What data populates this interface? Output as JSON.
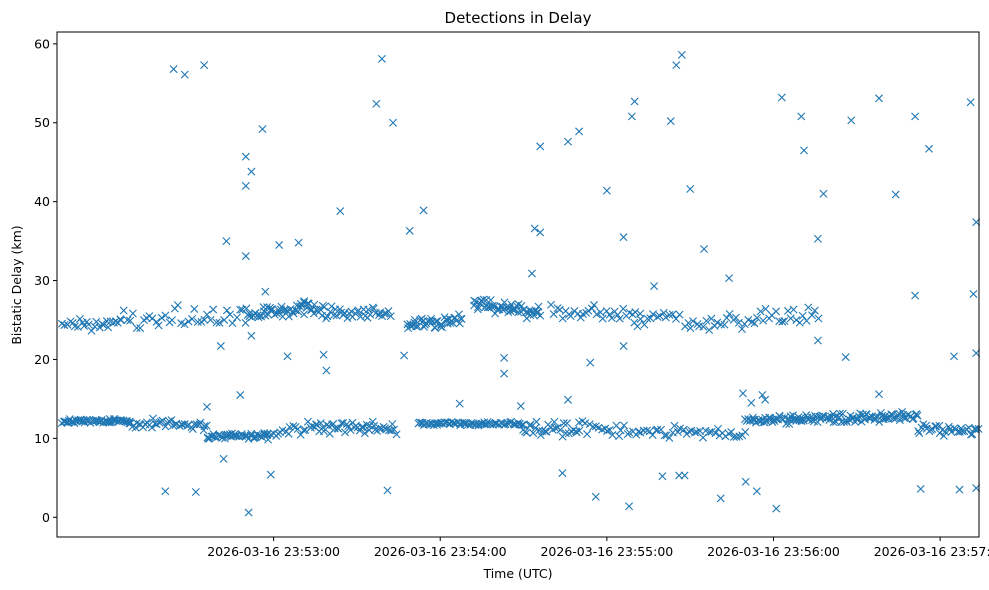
{
  "chart_data": {
    "type": "scatter",
    "title": "Detections in Delay",
    "xlabel": "Time (UTC)",
    "ylabel": "Bistatic Delay (km)",
    "marker": "x",
    "color": "#1f77b4",
    "xlim_seconds": [
      -48,
      284
    ],
    "ylim": [
      -2.5,
      61.5
    ],
    "x_unit": "seconds after 2026-03-16 23:52:30",
    "xticks": [
      {
        "t": 30,
        "label": "2026-03-16 23:53:00"
      },
      {
        "t": 90,
        "label": "2026-03-16 23:54:00"
      },
      {
        "t": 150,
        "label": "2026-03-16 23:55:00"
      },
      {
        "t": 210,
        "label": "2026-03-16 23:56:00"
      },
      {
        "t": 270,
        "label": "2026-03-16 23:57:00"
      }
    ],
    "yticks": [
      0,
      10,
      20,
      30,
      40,
      50,
      60
    ],
    "outliers": [
      [
        -6,
        56.8
      ],
      [
        -2,
        56.1
      ],
      [
        5,
        57.3
      ],
      [
        20,
        45.7
      ],
      [
        20,
        42.0
      ],
      [
        22,
        43.8
      ],
      [
        26,
        49.2
      ],
      [
        67,
        52.4
      ],
      [
        69,
        58.1
      ],
      [
        73,
        50.0
      ],
      [
        126,
        47.0
      ],
      [
        136,
        47.6
      ],
      [
        140,
        48.9
      ],
      [
        159,
        50.8
      ],
      [
        160,
        52.7
      ],
      [
        173,
        50.2
      ],
      [
        175,
        57.3
      ],
      [
        177,
        58.6
      ],
      [
        180,
        41.6
      ],
      [
        213,
        53.2
      ],
      [
        220,
        50.8
      ],
      [
        221,
        46.5
      ],
      [
        238,
        50.3
      ],
      [
        248,
        53.1
      ],
      [
        261,
        50.8
      ],
      [
        266,
        46.7
      ],
      [
        281,
        52.6
      ],
      [
        13,
        35.0
      ],
      [
        20,
        33.1
      ],
      [
        32,
        34.5
      ],
      [
        39,
        34.8
      ],
      [
        54,
        38.8
      ],
      [
        79,
        36.3
      ],
      [
        84,
        38.9
      ],
      [
        124,
        36.6
      ],
      [
        126,
        36.1
      ],
      [
        150,
        41.4
      ],
      [
        156,
        35.5
      ],
      [
        185,
        34.0
      ],
      [
        226,
        35.3
      ],
      [
        228,
        41.0
      ],
      [
        254,
        40.9
      ],
      [
        283,
        37.4
      ],
      [
        -9,
        3.3
      ],
      [
        2,
        3.2
      ],
      [
        21,
        0.6
      ],
      [
        29,
        5.4
      ],
      [
        71,
        3.4
      ],
      [
        134,
        5.6
      ],
      [
        146,
        2.6
      ],
      [
        158,
        1.4
      ],
      [
        170,
        5.2
      ],
      [
        176,
        5.3
      ],
      [
        178,
        5.3
      ],
      [
        191,
        2.4
      ],
      [
        200,
        4.5
      ],
      [
        204,
        3.3
      ],
      [
        211,
        1.1
      ],
      [
        263,
        3.6
      ],
      [
        277,
        3.5
      ],
      [
        283,
        3.7
      ],
      [
        12,
        7.4
      ],
      [
        49,
        18.6
      ],
      [
        113,
        18.2
      ],
      [
        35,
        20.4
      ],
      [
        48,
        20.6
      ],
      [
        77,
        20.5
      ],
      [
        113,
        20.2
      ],
      [
        144,
        19.6
      ],
      [
        156,
        21.7
      ],
      [
        226,
        22.4
      ],
      [
        236,
        20.3
      ],
      [
        275,
        20.4
      ],
      [
        283,
        20.8
      ],
      [
        18,
        15.5
      ],
      [
        97,
        14.4
      ],
      [
        136,
        14.9
      ],
      [
        199,
        15.7
      ],
      [
        206,
        15.5
      ],
      [
        248,
        15.6
      ],
      [
        6,
        14.0
      ],
      [
        119,
        14.1
      ],
      [
        202,
        14.5
      ],
      [
        207,
        14.9
      ],
      [
        11,
        21.7
      ],
      [
        22,
        23.0
      ],
      [
        27,
        28.6
      ],
      [
        41,
        27.4
      ],
      [
        123,
        30.9
      ],
      [
        194,
        30.3
      ],
      [
        167,
        29.3
      ],
      [
        162,
        25.8
      ],
      [
        261,
        28.1
      ],
      [
        282,
        28.3
      ]
    ],
    "clusters": [
      {
        "t0": -46,
        "t1": -22,
        "n": 55,
        "ystart": 12.1,
        "yend": 12.2,
        "spread": 0.35
      },
      {
        "t0": -22,
        "t1": 6,
        "n": 40,
        "ystart": 12.0,
        "yend": 11.6,
        "spread": 0.8
      },
      {
        "t0": 6,
        "t1": 28,
        "n": 45,
        "ystart": 10.2,
        "yend": 10.4,
        "spread": 0.5
      },
      {
        "t0": 28,
        "t1": 45,
        "n": 20,
        "ystart": 10.5,
        "yend": 11.6,
        "spread": 0.9
      },
      {
        "t0": 45,
        "t1": 74,
        "n": 45,
        "ystart": 11.5,
        "yend": 11.2,
        "spread": 1.0
      },
      {
        "t0": 82,
        "t1": 120,
        "n": 70,
        "ystart": 11.9,
        "yend": 11.8,
        "spread": 0.3
      },
      {
        "t0": 120,
        "t1": 140,
        "n": 30,
        "ystart": 11.4,
        "yend": 11.0,
        "spread": 1.0
      },
      {
        "t0": 140,
        "t1": 200,
        "n": 60,
        "ystart": 11.5,
        "yend": 10.5,
        "spread": 1.2
      },
      {
        "t0": 200,
        "t1": 262,
        "n": 130,
        "ystart": 12.3,
        "yend": 12.8,
        "spread": 0.7
      },
      {
        "t0": 262,
        "t1": 285,
        "n": 35,
        "ystart": 11.0,
        "yend": 11.2,
        "spread": 1.1
      },
      {
        "t0": -46,
        "t1": -25,
        "n": 25,
        "ystart": 24.3,
        "yend": 24.5,
        "spread": 0.8
      },
      {
        "t0": -25,
        "t1": 20,
        "n": 40,
        "ystart": 24.8,
        "yend": 26.0,
        "spread": 1.6
      },
      {
        "t0": 20,
        "t1": 48,
        "n": 55,
        "ystart": 26.0,
        "yend": 26.3,
        "spread": 1.2
      },
      {
        "t0": 48,
        "t1": 72,
        "n": 35,
        "ystart": 26.0,
        "yend": 25.7,
        "spread": 1.1
      },
      {
        "t0": 78,
        "t1": 98,
        "n": 40,
        "ystart": 24.5,
        "yend": 25.0,
        "spread": 1.0
      },
      {
        "t0": 102,
        "t1": 126,
        "n": 55,
        "ystart": 27.0,
        "yend": 26.0,
        "spread": 1.0
      },
      {
        "t0": 130,
        "t1": 160,
        "n": 30,
        "ystart": 26.0,
        "yend": 25.6,
        "spread": 1.2
      },
      {
        "t0": 160,
        "t1": 176,
        "n": 15,
        "ystart": 25.0,
        "yend": 26.0,
        "spread": 1.3
      },
      {
        "t0": 178,
        "t1": 226,
        "n": 45,
        "ystart": 24.5,
        "yend": 25.8,
        "spread": 1.3
      }
    ]
  }
}
